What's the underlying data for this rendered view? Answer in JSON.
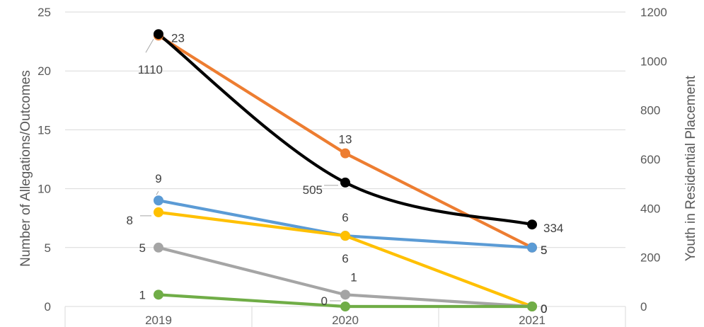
{
  "chart_data": {
    "type": "line",
    "categories": [
      "2019",
      "2020",
      "2021"
    ],
    "ylabel": "Number of Allegations/Outcomes",
    "y2label": "Youth in Residential Placement",
    "ylim": [
      0,
      25
    ],
    "y_ticks": [
      "0",
      "5",
      "10",
      "15",
      "20",
      "25"
    ],
    "y2lim": [
      0,
      1200
    ],
    "y2_ticks": [
      "0",
      "200",
      "400",
      "600",
      "800",
      "1000",
      "1200"
    ],
    "grid": true,
    "legend": "none",
    "series": [
      {
        "color": "#ED7D31",
        "axis": "left",
        "smooth": false,
        "values": [
          23,
          13,
          5
        ],
        "labels": [
          "23",
          "13",
          "5"
        ]
      },
      {
        "color": "#5B9BD5",
        "axis": "left",
        "smooth": false,
        "values": [
          9,
          6,
          5
        ],
        "labels": [
          "9",
          "6",
          "5"
        ]
      },
      {
        "color": "#FFC000",
        "axis": "left",
        "smooth": false,
        "values": [
          8,
          6,
          0
        ],
        "labels": [
          "8",
          "6",
          "0"
        ]
      },
      {
        "color": "#A5A5A5",
        "axis": "left",
        "smooth": false,
        "values": [
          5,
          1,
          0
        ],
        "labels": [
          "5",
          "1",
          "0"
        ]
      },
      {
        "color": "#70AD47",
        "axis": "left",
        "smooth": false,
        "values": [
          1,
          0,
          0
        ],
        "labels": [
          "1",
          "0",
          "0"
        ]
      },
      {
        "color": "#000000",
        "axis": "right",
        "smooth": true,
        "values": [
          1110,
          505,
          334
        ],
        "labels": [
          "1110",
          "505",
          "334"
        ]
      }
    ]
  }
}
